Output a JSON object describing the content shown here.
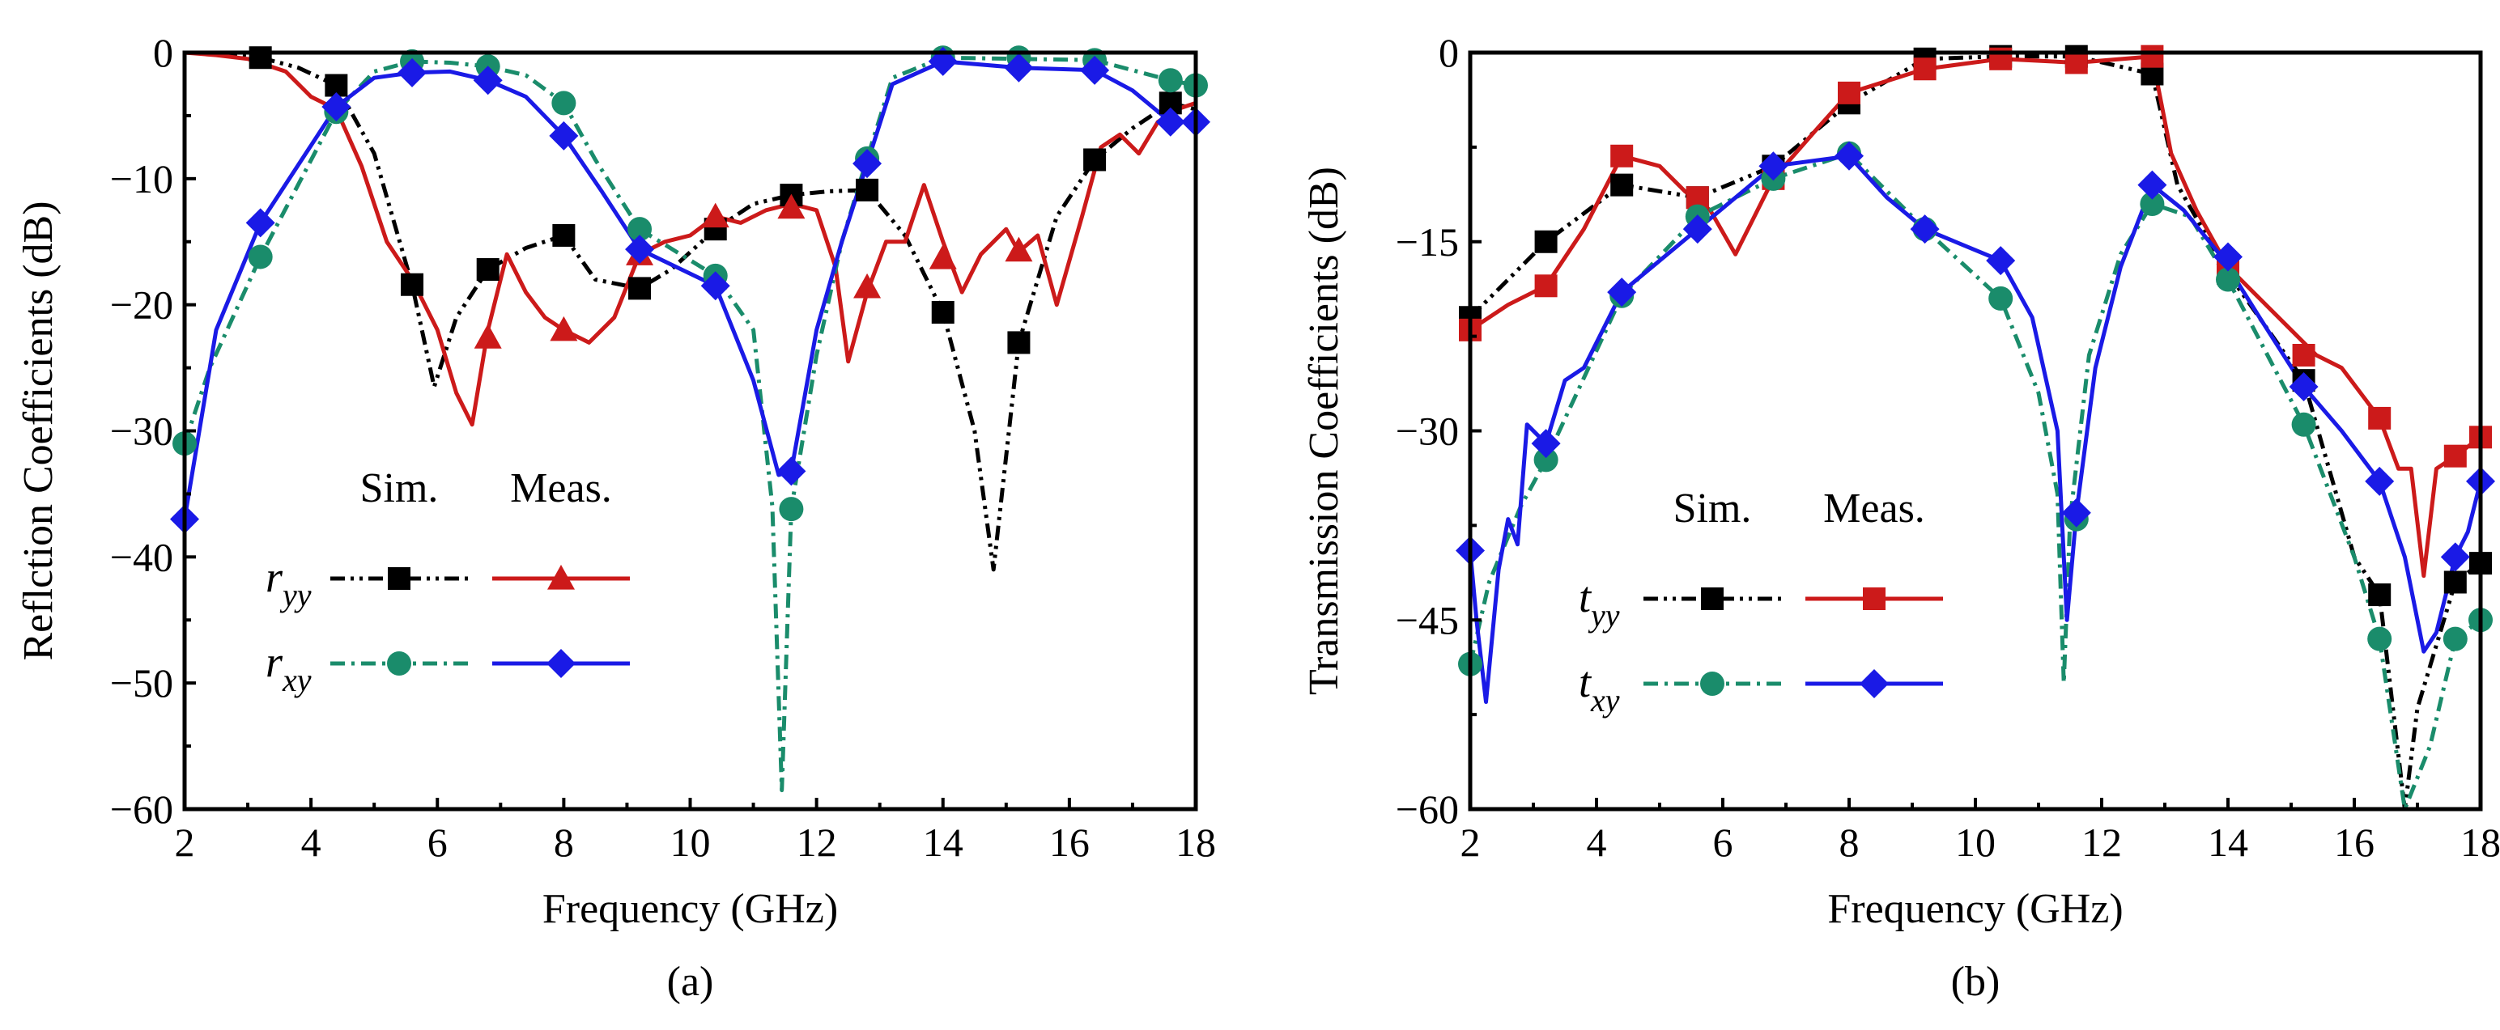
{
  "figure": {
    "panels": [
      {
        "id": "a",
        "label": "(a)"
      },
      {
        "id": "b",
        "label": "(b)"
      }
    ]
  },
  "chart_data": [
    {
      "type": "line",
      "panel_label": "(a)",
      "xlabel": "Frequency (GHz)",
      "ylabel": "Reflction Coefficients (dB)",
      "xlim": [
        2,
        18
      ],
      "ylim": [
        -60,
        0
      ],
      "xticks": [
        2,
        4,
        6,
        8,
        10,
        12,
        14,
        16,
        18
      ],
      "yticks": [
        0,
        -10,
        -20,
        -30,
        -40,
        -50,
        -60
      ],
      "ytick_labels": [
        "0",
        "−10",
        "−20",
        "−30",
        "−40",
        "−50",
        "−60"
      ],
      "legend": {
        "position": "bottom-left",
        "col_headers": [
          "Sim.",
          "Meas."
        ],
        "rows": [
          {
            "symbol": "r",
            "subscript": "yy",
            "sim_series": "r_yy Sim.",
            "meas_series": "r_yy Meas."
          },
          {
            "symbol": "r",
            "subscript": "xy",
            "sim_series": "r_xy Sim.",
            "meas_series": "r_xy Meas."
          }
        ]
      },
      "series": [
        {
          "name": "r_yy Sim.",
          "color": "#000000",
          "dash": "dashdotdot",
          "marker": "square",
          "x": [
            2.0,
            2.6,
            3.2,
            3.8,
            4.4,
            5.0,
            5.6,
            5.95,
            6.3,
            6.8,
            7.4,
            8.0,
            8.5,
            9.2,
            9.7,
            10.4,
            11.0,
            11.6,
            12.2,
            12.8,
            13.4,
            14.0,
            14.5,
            14.8,
            15.2,
            15.8,
            16.4,
            17.0,
            17.6,
            18.0
          ],
          "y": [
            0,
            -0.1,
            -0.4,
            -1.2,
            -2.6,
            -8,
            -18.4,
            -26.5,
            -21,
            -17.2,
            -15.5,
            -14.5,
            -18,
            -18.7,
            -17.2,
            -14,
            -12,
            -11.3,
            -11,
            -10.9,
            -14.5,
            -20.6,
            -30,
            -41,
            -23,
            -13,
            -8.5,
            -6,
            -4,
            -4.5
          ],
          "markers_x": [
            3.2,
            4.4,
            5.6,
            6.8,
            8.0,
            9.2,
            10.4,
            11.6,
            12.8,
            14.0,
            15.2,
            16.4,
            17.6
          ],
          "markers_y": [
            -0.4,
            -2.6,
            -18.4,
            -17.2,
            -14.5,
            -18.7,
            -14,
            -11.3,
            -10.9,
            -20.6,
            -23,
            -8.5,
            -4
          ]
        },
        {
          "name": "r_yy Meas.",
          "color": "#cc1a1a",
          "dash": "solid",
          "marker": "triangle",
          "x": [
            2.0,
            2.5,
            3.0,
            3.6,
            4.0,
            4.4,
            4.8,
            5.2,
            5.6,
            6.0,
            6.3,
            6.55,
            6.8,
            7.1,
            7.4,
            7.7,
            8.0,
            8.4,
            8.8,
            9.2,
            9.6,
            10.0,
            10.4,
            10.8,
            11.2,
            11.6,
            12.0,
            12.3,
            12.5,
            12.8,
            13.1,
            13.4,
            13.7,
            14.0,
            14.3,
            14.6,
            15.0,
            15.2,
            15.5,
            15.8,
            16.2,
            16.5,
            16.8,
            17.1,
            17.4,
            17.7,
            18.0
          ],
          "y": [
            0,
            -0.2,
            -0.5,
            -1.5,
            -3.5,
            -4.5,
            -9,
            -15,
            -18,
            -22,
            -27,
            -29.5,
            -22,
            -16,
            -19,
            -21,
            -22,
            -23,
            -21,
            -16,
            -15,
            -14.5,
            -13,
            -13.5,
            -12.5,
            -12,
            -12.5,
            -17,
            -24.5,
            -19,
            -15,
            -15,
            -10.5,
            -15,
            -19,
            -16,
            -14,
            -15.8,
            -14.5,
            -20,
            -13,
            -7.5,
            -6.5,
            -8,
            -5.5,
            -4.5,
            -4
          ],
          "markers_x": [
            6.8,
            8.0,
            9.2,
            10.4,
            11.6,
            12.8,
            14.0,
            15.2
          ],
          "markers_y": [
            -22.6,
            -22,
            -16,
            -13,
            -12.3,
            -18.6,
            -16.3,
            -15.7
          ]
        },
        {
          "name": "r_xy Sim.",
          "color": "#1a8c6b",
          "dash": "dashdot",
          "marker": "circle",
          "x": [
            2.0,
            2.4,
            3.2,
            4.4,
            5.0,
            5.6,
            6.2,
            6.8,
            7.4,
            8.0,
            8.5,
            9.2,
            10.4,
            11.0,
            11.3,
            11.45,
            11.6,
            12.0,
            12.4,
            12.8,
            13.2,
            14.0,
            16.4,
            17.6,
            18.0
          ],
          "y": [
            -31,
            -25,
            -16.2,
            -4.7,
            -1.5,
            -0.7,
            -0.8,
            -1.1,
            -1.8,
            -4,
            -8.5,
            -14,
            -17.7,
            -22,
            -36,
            -58.5,
            -36.2,
            -24,
            -15,
            -8.4,
            -2,
            -0.4,
            -0.6,
            -2.2,
            -2.6
          ],
          "markers_x": [
            2.0,
            3.2,
            4.4,
            5.6,
            6.8,
            8.0,
            9.2,
            10.4,
            11.6,
            12.8,
            14.0,
            15.2,
            16.4,
            17.6,
            18.0
          ],
          "markers_y": [
            -31,
            -16.2,
            -4.7,
            -0.7,
            -1.1,
            -4,
            -14,
            -17.7,
            -36.2,
            -8.4,
            -0.4,
            -0.4,
            -0.6,
            -2.2,
            -2.6
          ]
        },
        {
          "name": "r_xy Meas.",
          "color": "#1a1ae6",
          "dash": "solid",
          "marker": "diamond",
          "x": [
            2.0,
            2.5,
            3.2,
            4.4,
            5.0,
            5.6,
            6.2,
            6.8,
            7.4,
            8.0,
            8.6,
            9.2,
            10.4,
            11.0,
            11.4,
            11.6,
            12.0,
            12.4,
            12.8,
            13.2,
            14.0,
            15.2,
            16.4,
            17.0,
            17.6,
            18.0
          ],
          "y": [
            -37,
            -22,
            -13.5,
            -4.3,
            -2,
            -1.6,
            -1.5,
            -2.2,
            -3.5,
            -6.6,
            -11,
            -15.6,
            -18.5,
            -26,
            -33.5,
            -33.2,
            -22,
            -15,
            -8.8,
            -2.5,
            -0.7,
            -1.2,
            -1.4,
            -3,
            -5.5,
            -5.5
          ],
          "markers_x": [
            2.0,
            3.2,
            4.4,
            5.6,
            6.8,
            8.0,
            9.2,
            10.4,
            11.6,
            12.8,
            14.0,
            15.2,
            16.4,
            17.6,
            18.0
          ],
          "markers_y": [
            -37,
            -13.5,
            -4.3,
            -1.6,
            -2.2,
            -6.6,
            -15.6,
            -18.5,
            -33.2,
            -8.8,
            -0.7,
            -1.2,
            -1.4,
            -5.5,
            -5.5
          ]
        }
      ]
    },
    {
      "type": "line",
      "panel_label": "(b)",
      "xlabel": "Frequency (GHz)",
      "ylabel": "Transmission Coefficients (dB)",
      "xlim": [
        2,
        18
      ],
      "ylim": [
        -60,
        0
      ],
      "xticks": [
        2,
        4,
        6,
        8,
        10,
        12,
        14,
        16,
        18
      ],
      "yticks": [
        0,
        -15,
        -30,
        -45,
        -60
      ],
      "ytick_labels": [
        "0",
        "−15",
        "−30",
        "−45",
        "−60"
      ],
      "legend": {
        "position": "bottom-left",
        "col_headers": [
          "Sim.",
          "Meas."
        ],
        "rows": [
          {
            "symbol": "t",
            "subscript": "yy",
            "sim_series": "t_yy Sim.",
            "meas_series": "t_yy Meas."
          },
          {
            "symbol": "t",
            "subscript": "xy",
            "sim_series": "t_xy Sim.",
            "meas_series": "t_xy Meas."
          }
        ]
      },
      "series": [
        {
          "name": "t_yy Sim.",
          "color": "#000000",
          "dash": "dashdotdot",
          "marker": "square",
          "x": [
            2.0,
            3.2,
            4.4,
            5.6,
            6.8,
            8.0,
            9.2,
            10.4,
            11.6,
            12.8,
            13.2,
            14.0,
            15.2,
            16.0,
            16.4,
            16.8,
            17.0,
            17.6,
            18.0
          ],
          "y": [
            -21,
            -15,
            -10.5,
            -11.5,
            -9,
            -4,
            -0.5,
            -0.3,
            -0.3,
            -1.7,
            -10.5,
            -17.5,
            -26,
            -40,
            -43,
            -60,
            -52,
            -42,
            -40.5
          ],
          "markers_x": [
            2.0,
            3.2,
            4.4,
            5.6,
            6.8,
            8.0,
            9.2,
            10.4,
            11.6,
            12.8,
            14.0,
            15.2,
            16.4,
            17.6,
            18.0
          ],
          "markers_y": [
            -21,
            -15,
            -10.5,
            -11.5,
            -9,
            -4,
            -0.5,
            -0.3,
            -0.3,
            -1.7,
            -17.5,
            -26,
            -43,
            -42,
            -40.5
          ]
        },
        {
          "name": "t_yy Meas.",
          "color": "#cc1a1a",
          "dash": "solid",
          "marker": "square",
          "x": [
            2.0,
            2.6,
            3.2,
            3.8,
            4.4,
            5.0,
            5.4,
            5.8,
            6.2,
            6.8,
            7.5,
            8.0,
            9.2,
            10.4,
            11.6,
            12.8,
            13.1,
            13.5,
            14.0,
            14.5,
            15.0,
            15.4,
            15.8,
            16.4,
            16.7,
            16.9,
            17.1,
            17.3,
            17.6,
            18.0
          ],
          "y": [
            -22,
            -20,
            -18.5,
            -14,
            -8.2,
            -9,
            -11,
            -12.5,
            -16,
            -10,
            -6,
            -3.2,
            -1.3,
            -0.5,
            -0.8,
            -0.3,
            -8,
            -12.5,
            -17,
            -19.5,
            -22,
            -24,
            -25,
            -29,
            -33,
            -33,
            -41.5,
            -33,
            -32,
            -30.5
          ],
          "markers_x": [
            2.0,
            3.2,
            4.4,
            5.6,
            6.8,
            8.0,
            9.2,
            10.4,
            11.6,
            12.8,
            14.0,
            15.2,
            16.4,
            17.6,
            18.0
          ],
          "markers_y": [
            -22,
            -18.5,
            -8.2,
            -11.5,
            -10,
            -3.2,
            -1.3,
            -0.5,
            -0.8,
            -0.3,
            -17,
            -24,
            -29,
            -32,
            -30.5
          ]
        },
        {
          "name": "t_xy Sim.",
          "color": "#1a8c6b",
          "dash": "dashdot",
          "marker": "circle",
          "x": [
            2.0,
            2.3,
            2.8,
            3.2,
            4.4,
            5.6,
            6.8,
            8.0,
            9.2,
            10.4,
            11.0,
            11.3,
            11.4,
            11.5,
            11.8,
            12.3,
            12.8,
            13.4,
            14.0,
            15.2,
            16.0,
            16.4,
            16.8,
            17.2,
            17.6,
            18.0
          ],
          "y": [
            -48.5,
            -42,
            -36,
            -32.3,
            -19.3,
            -13,
            -10,
            -8,
            -14,
            -19.5,
            -27,
            -35,
            -50,
            -37,
            -24,
            -16,
            -12,
            -13,
            -18,
            -29.5,
            -40,
            -46.5,
            -60,
            -55,
            -46.5,
            -45
          ],
          "markers_x": [
            2.0,
            3.2,
            4.4,
            5.6,
            6.8,
            8.0,
            9.2,
            10.4,
            11.6,
            12.8,
            14.0,
            15.2,
            16.4,
            17.6,
            18.0
          ],
          "markers_y": [
            -48.5,
            -32.3,
            -19.3,
            -13,
            -10,
            -8,
            -14,
            -19.5,
            -37,
            -12,
            -18,
            -29.5,
            -46.5,
            -46.5,
            -45
          ]
        },
        {
          "name": "t_xy Meas.",
          "color": "#1a1ae6",
          "dash": "solid",
          "marker": "diamond",
          "x": [
            2.0,
            2.1,
            2.25,
            2.45,
            2.6,
            2.75,
            2.9,
            3.2,
            3.5,
            3.8,
            4.4,
            5.6,
            6.8,
            8.0,
            8.6,
            9.2,
            10.4,
            10.9,
            11.3,
            11.45,
            11.6,
            11.9,
            12.3,
            12.8,
            13.3,
            13.9,
            14.5,
            15.2,
            15.8,
            16.4,
            16.8,
            17.1,
            17.3,
            17.6,
            17.8,
            18.0
          ],
          "y": [
            -39.5,
            -45,
            -51.5,
            -41,
            -37,
            -39,
            -29.5,
            -31,
            -26,
            -25,
            -19,
            -14,
            -9,
            -8.2,
            -11.5,
            -14,
            -16.5,
            -21,
            -30,
            -45,
            -36.5,
            -25,
            -17,
            -10.5,
            -12.5,
            -16.2,
            -21,
            -26.5,
            -30,
            -34,
            -40,
            -47.5,
            -46,
            -40,
            -38,
            -34
          ],
          "markers_x": [
            2.0,
            3.2,
            4.4,
            5.6,
            6.8,
            8.0,
            9.2,
            10.4,
            11.6,
            12.8,
            14.0,
            15.2,
            16.4,
            17.6,
            18.0
          ],
          "markers_y": [
            -39.5,
            -31,
            -19,
            -14,
            -9,
            -8.2,
            -14,
            -16.5,
            -36.5,
            -10.5,
            -16.2,
            -26.5,
            -34,
            -40,
            -34
          ]
        }
      ]
    }
  ]
}
